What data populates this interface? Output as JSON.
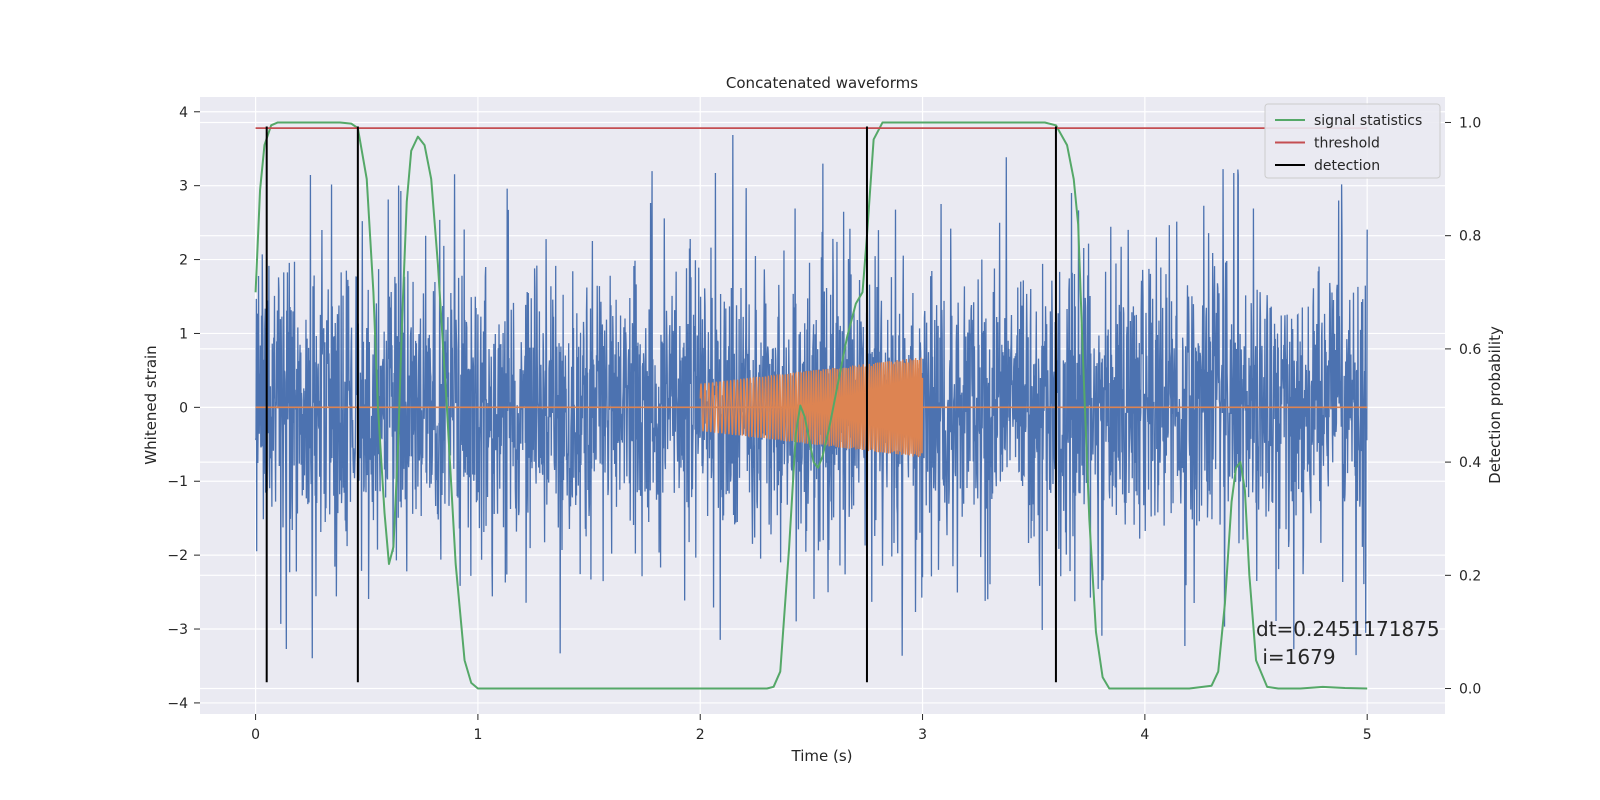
{
  "chart_data": {
    "type": "line",
    "title": "Concatenated waveforms",
    "xlabel": "Time (s)",
    "ylabel": "Whitened strain",
    "y2label": "Detection probability",
    "xlim": [
      -0.25,
      5.35
    ],
    "ylim": [
      -4.15,
      4.2
    ],
    "y2lim": [
      -0.045,
      1.045
    ],
    "xticks": [
      0,
      1,
      2,
      3,
      4,
      5
    ],
    "yticks": [
      -4,
      -3,
      -2,
      -1,
      0,
      1,
      2,
      3,
      4
    ],
    "y2ticks": [
      0.0,
      0.2,
      0.4,
      0.6,
      0.8,
      1.0
    ],
    "grid": true,
    "legend_position": "top-right",
    "colors": {
      "background": "#eaeaf2",
      "grid": "#ffffff",
      "noise": "#4c72b0",
      "injection": "#dd8452",
      "signal": "#55a868",
      "threshold": "#c44e52",
      "detection": "#000000"
    },
    "annotation": {
      "line1": "dt=0.2451171875",
      "line2": " i=1679",
      "x": 4.5,
      "y": -3.0
    },
    "series": [
      {
        "name": "signal statistics",
        "axis": "right",
        "x": [
          0.0,
          0.02,
          0.04,
          0.07,
          0.1,
          0.2,
          0.3,
          0.38,
          0.43,
          0.46,
          0.5,
          0.53,
          0.55,
          0.58,
          0.6,
          0.62,
          0.64,
          0.66,
          0.68,
          0.7,
          0.73,
          0.76,
          0.79,
          0.82,
          0.86,
          0.9,
          0.94,
          0.97,
          1.0,
          1.5,
          2.0,
          2.3,
          2.33,
          2.36,
          2.4,
          2.43,
          2.45,
          2.47,
          2.49,
          2.51,
          2.53,
          2.55,
          2.58,
          2.62,
          2.66,
          2.7,
          2.73,
          2.75,
          2.78,
          2.82,
          2.88,
          3.0,
          3.3,
          3.55,
          3.6,
          3.65,
          3.68,
          3.7,
          3.72,
          3.75,
          3.78,
          3.81,
          3.84,
          3.9,
          4.0,
          4.2,
          4.3,
          4.33,
          4.36,
          4.39,
          4.41,
          4.43,
          4.45,
          4.47,
          4.5,
          4.55,
          4.6,
          4.7,
          4.8,
          4.9,
          5.0
        ],
        "y": [
          0.7,
          0.88,
          0.96,
          0.995,
          1.0,
          1.0,
          1.0,
          1.0,
          0.998,
          0.99,
          0.9,
          0.7,
          0.5,
          0.31,
          0.22,
          0.25,
          0.42,
          0.66,
          0.86,
          0.95,
          0.975,
          0.96,
          0.9,
          0.75,
          0.5,
          0.22,
          0.05,
          0.01,
          0.0,
          0.0,
          0.0,
          0.0,
          0.003,
          0.03,
          0.25,
          0.45,
          0.5,
          0.48,
          0.44,
          0.4,
          0.39,
          0.41,
          0.46,
          0.54,
          0.62,
          0.68,
          0.7,
          0.8,
          0.97,
          1.0,
          1.0,
          1.0,
          1.0,
          1.0,
          0.995,
          0.96,
          0.9,
          0.82,
          0.6,
          0.3,
          0.1,
          0.02,
          0.0,
          0.0,
          0.0,
          0.0,
          0.005,
          0.03,
          0.15,
          0.33,
          0.39,
          0.4,
          0.35,
          0.2,
          0.05,
          0.003,
          0.0,
          0.0,
          0.003,
          0.001,
          0.0
        ]
      },
      {
        "name": "threshold",
        "axis": "right",
        "x": [
          0.0,
          5.0
        ],
        "y": [
          0.99,
          0.99
        ]
      },
      {
        "name": "detection",
        "axis": "left",
        "x": [
          0.05,
          0.46,
          2.75,
          3.6
        ],
        "ymin": -3.72,
        "ymax": 3.8
      }
    ],
    "noise_trace": {
      "axis": "left",
      "x_start": 0.0,
      "x_end": 5.0,
      "typical_amplitude": 1.0,
      "peak_amplitude": 3.8
    },
    "injection_trace": {
      "axis": "left",
      "x_start": 2.0,
      "x_end": 3.0,
      "amplitude_start": 0.32,
      "amplitude_end": 0.68
    }
  }
}
